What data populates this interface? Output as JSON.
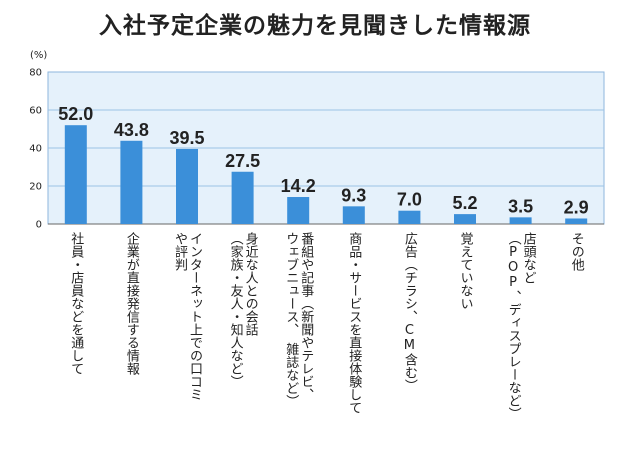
{
  "chart_data": {
    "type": "bar",
    "title": "入社予定企業の魅力を見聞きした情報源",
    "unit": "(%)",
    "ylim": [
      0,
      80
    ],
    "yticks": [
      "0",
      "20",
      "40",
      "60",
      "80"
    ],
    "grid": true,
    "categories": [
      "社員・店員などを通して",
      "企業が直接発信する情報",
      "インターネット上での口コミや評判",
      "身近な人との会話（家族・友人・知人など）",
      "番組や記事（新聞やテレビ、ウェブニュース、雑誌など）",
      "商品・サービスを直接体験して",
      "広告（チラシ、CM含む）",
      "覚えていない",
      "店頭など（POP、ディスプレーなど）",
      "その他"
    ],
    "category_lines": [
      [
        "社員・店員などを通して"
      ],
      [
        "企業が直接発信する情報"
      ],
      [
        "インターネット上での口コミ",
        "や評判"
      ],
      [
        "身近な人との会話",
        "（家族・友人・知人など）"
      ],
      [
        "番組や記事（新聞やテレビ、",
        "ウェブニュース、　雑誌など）"
      ],
      [
        "商品・サービスを直接体験して"
      ],
      [
        "広告（チラシ、CM含む）"
      ],
      [
        "覚えていない"
      ],
      [
        "店頭など",
        "（POP、ディスプレーなど）"
      ],
      [
        "その他"
      ]
    ],
    "values": [
      52.0,
      43.8,
      39.5,
      27.5,
      14.2,
      9.3,
      7.0,
      5.2,
      3.5,
      2.9
    ],
    "value_labels": [
      "52.0",
      "43.8",
      "39.5",
      "27.5",
      "14.2",
      "9.3",
      "7.0",
      "5.2",
      "3.5",
      "2.9"
    ],
    "colors": {
      "bar": "#3b8fd9",
      "plot_bg": "#e5f1fb",
      "grid": "#9cc3e6",
      "frame": "#8eb6dc"
    }
  }
}
